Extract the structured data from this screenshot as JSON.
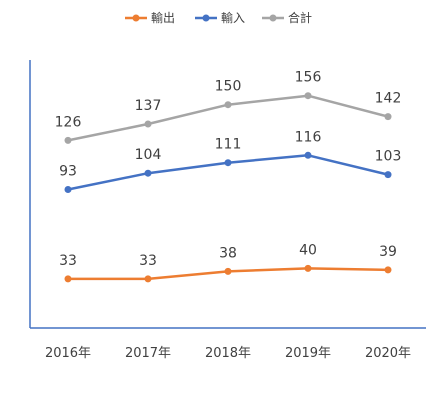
{
  "chart_data": {
    "type": "line",
    "categories": [
      "2016年",
      "2017年",
      "2018年",
      "2019年",
      "2020年"
    ],
    "series": [
      {
        "name": "輸出",
        "color": "#ED7D31",
        "values": [
          33,
          33,
          38,
          40,
          39
        ]
      },
      {
        "name": "輸入",
        "color": "#4472C4",
        "values": [
          93,
          104,
          111,
          116,
          103
        ]
      },
      {
        "name": "合計",
        "color": "#A5A5A5",
        "values": [
          126,
          137,
          150,
          156,
          142
        ]
      }
    ],
    "title": "",
    "xlabel": "",
    "ylabel": "",
    "ylim": [
      0,
      180
    ],
    "grid": false,
    "legend": "top-center",
    "axis_color": "#4472C4"
  }
}
